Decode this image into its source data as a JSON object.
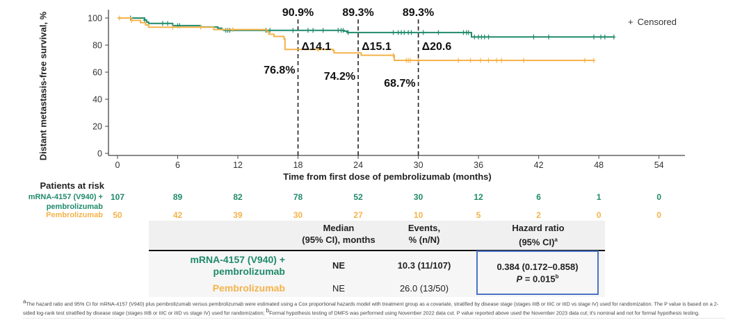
{
  "chart_data": {
    "type": "line",
    "subtype": "kaplan-meier",
    "title": "",
    "xlabel": "Time from first dose of pembrolizumab (months)",
    "ylabel": "Distant metastasis-free survival, %",
    "xlim": [
      -0.5,
      56.5
    ],
    "ylim": [
      0,
      105
    ],
    "xticks": [
      0,
      6,
      12,
      18,
      24,
      30,
      36,
      42,
      48,
      54
    ],
    "yticks": [
      0,
      20,
      40,
      60,
      80,
      100
    ],
    "grid": false,
    "legend": {
      "position": "top-right",
      "entries": [
        {
          "symbol": "+",
          "label": "Censored"
        }
      ]
    },
    "series": [
      {
        "name": "mRNA-4157 (V940) + pembrolizumab",
        "color": "#1f8a6a",
        "steps": [
          [
            0,
            100
          ],
          [
            2.7,
            98.5
          ],
          [
            2.9,
            97
          ],
          [
            3.1,
            96
          ],
          [
            5.5,
            94.4
          ],
          [
            8.3,
            93.4
          ],
          [
            10,
            92.5
          ],
          [
            10.4,
            91.5
          ],
          [
            10.6,
            90.9
          ],
          [
            22.6,
            90.3
          ],
          [
            22.9,
            89.3
          ],
          [
            35.3,
            86.0
          ],
          [
            49.5,
            86.0
          ]
        ],
        "censored": [
          1.3,
          2.7,
          4.5,
          5.0,
          6.0,
          6.2,
          10.8,
          11.0,
          11.2,
          14.8,
          15.2,
          17.5,
          19.0,
          19.5,
          20.5,
          22.0,
          22.3,
          22.5,
          23.0,
          27.5,
          28.0,
          28.3,
          28.6,
          29.0,
          29.3,
          30.5,
          32.0,
          34.5,
          34.8,
          35.0,
          35.6,
          36.0,
          36.3,
          36.6,
          37.0,
          41.5,
          43.0,
          47.5,
          48.2,
          48.6,
          49.5
        ]
      },
      {
        "name": "Pembrolizumab",
        "color": "#f5b24a",
        "steps": [
          [
            0,
            100
          ],
          [
            1.4,
            98.3
          ],
          [
            2.3,
            96.6
          ],
          [
            2.8,
            94.9
          ],
          [
            3.1,
            93.2
          ],
          [
            9.6,
            91.5
          ],
          [
            14.9,
            89.8
          ],
          [
            15.1,
            88.1
          ],
          [
            15.6,
            86.4
          ],
          [
            16.6,
            84.7
          ],
          [
            16.7,
            76.8
          ],
          [
            21.5,
            76.0
          ],
          [
            21.6,
            74.2
          ],
          [
            24.3,
            72.5
          ],
          [
            27.6,
            68.7
          ],
          [
            47.5,
            68.7
          ]
        ],
        "censored": [
          0.2,
          1.4,
          5.5,
          8.3,
          11.5,
          20.0,
          27.5,
          28.8,
          29.0,
          29.2,
          30.0,
          34.0,
          35.2,
          36.2,
          37.0,
          37.8,
          38.3,
          40.5,
          46.6,
          47.5
        ]
      }
    ],
    "landmarks": [
      {
        "month": 18,
        "top_label": "90.9%",
        "delta_label": "Δ14.1",
        "bottom_label": "76.8%"
      },
      {
        "month": 24,
        "top_label": "89.3%",
        "delta_label": "Δ15.1",
        "bottom_label": "74.2%"
      },
      {
        "month": 30,
        "top_label": "89.3%",
        "delta_label": "Δ20.6",
        "bottom_label": "68.7%"
      }
    ]
  },
  "risk_table": {
    "title": "Patients at risk",
    "rows": [
      {
        "label_line1": "mRNA-4157  (V940) +",
        "label_line2": "pembrolizumab",
        "values": [
          "107",
          "89",
          "82",
          "78",
          "52",
          "30",
          "12",
          "6",
          "1",
          "0"
        ]
      },
      {
        "label_line1": "Pembrolizumab",
        "values": [
          "50",
          "42",
          "39",
          "30",
          "27",
          "10",
          "5",
          "2",
          "0",
          "0"
        ]
      }
    ]
  },
  "summary_table": {
    "headers": {
      "median_1": "Median",
      "median_2": "(95% CI), months",
      "events_1": "Events,",
      "events_2": "% (n/N)",
      "hr_1": "Hazard ratio",
      "hr_2": "(95% CI)",
      "hr_sup": "a"
    },
    "rows": [
      {
        "arm_line1": "mRNA-4157 (V940) +",
        "arm_line2": "pembrolizumab",
        "median": "NE",
        "events": "10.3 (11/107)"
      },
      {
        "arm_line1": "Pembrolizumab",
        "median": "NE",
        "events": "26.0 (13/50)"
      }
    ],
    "hazard_ratio": "0.384 (0.172–0.858)",
    "p_label": "P",
    "p_value": " = 0.015",
    "p_sup": "b"
  },
  "footnote": {
    "sup_a": "a",
    "text_a": "The hazard ratio and 95% CI for mRNA-4157 (V940) plus pembrolizumab versus pembrolizumab were estimated using a Cox proportional hazards model with treatment group as a covariate, stratified by disease stage (stages IIIB  or IIIC  or IIID  vs stage IV) used for randomization. The P value is based on a 2-sided log-rank test stratified by disease stage (stages IIIB  or IIIC  or IIID  vs stage IV) used for randomization; ",
    "sup_b": "b",
    "text_b": "Formal hypothesis testing of DMFS was performed using November 2022 data cut. P value reported above used the November 2023 data cut; it's nominal and not for formal hypothesis testing."
  }
}
